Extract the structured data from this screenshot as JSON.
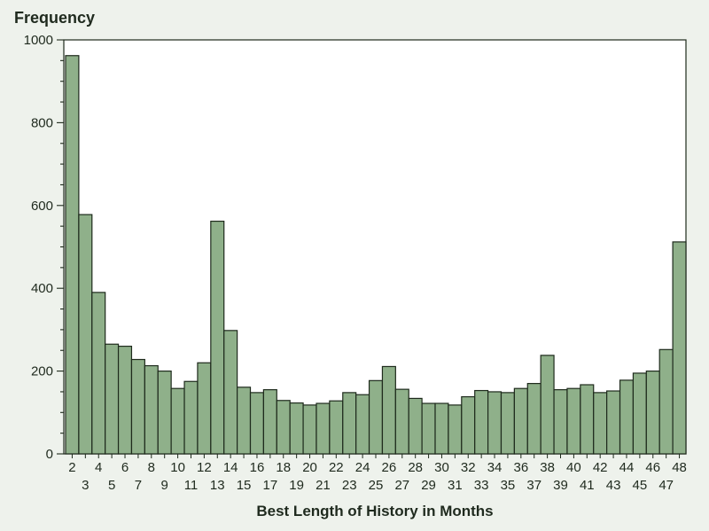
{
  "chart_data": {
    "type": "bar",
    "ylabel": "Frequency",
    "xlabel": "Best Length of History in Months",
    "ylim": [
      0,
      1000
    ],
    "yticks": [
      0,
      200,
      400,
      600,
      800,
      1000
    ],
    "categories": [
      2,
      3,
      4,
      5,
      6,
      7,
      8,
      9,
      10,
      11,
      12,
      13,
      14,
      15,
      16,
      17,
      18,
      19,
      20,
      21,
      22,
      23,
      24,
      25,
      26,
      27,
      28,
      29,
      30,
      31,
      32,
      33,
      34,
      35,
      36,
      37,
      38,
      39,
      40,
      41,
      42,
      43,
      44,
      45,
      46,
      47,
      48
    ],
    "values": [
      962,
      578,
      390,
      265,
      260,
      228,
      213,
      200,
      158,
      175,
      220,
      562,
      298,
      161,
      148,
      155,
      129,
      123,
      118,
      122,
      128,
      148,
      143,
      177,
      211,
      156,
      134,
      122,
      122,
      118,
      138,
      153,
      150,
      148,
      158,
      170,
      238,
      155,
      158,
      167,
      148,
      152,
      178,
      195,
      200,
      252,
      512
    ],
    "grid": false,
    "legend": "none",
    "colors": {
      "bar_fill": "#8fb08a",
      "bar_stroke": "#1e2a1c",
      "background": "#eef2ec",
      "plot_background": "#ffffff"
    }
  }
}
